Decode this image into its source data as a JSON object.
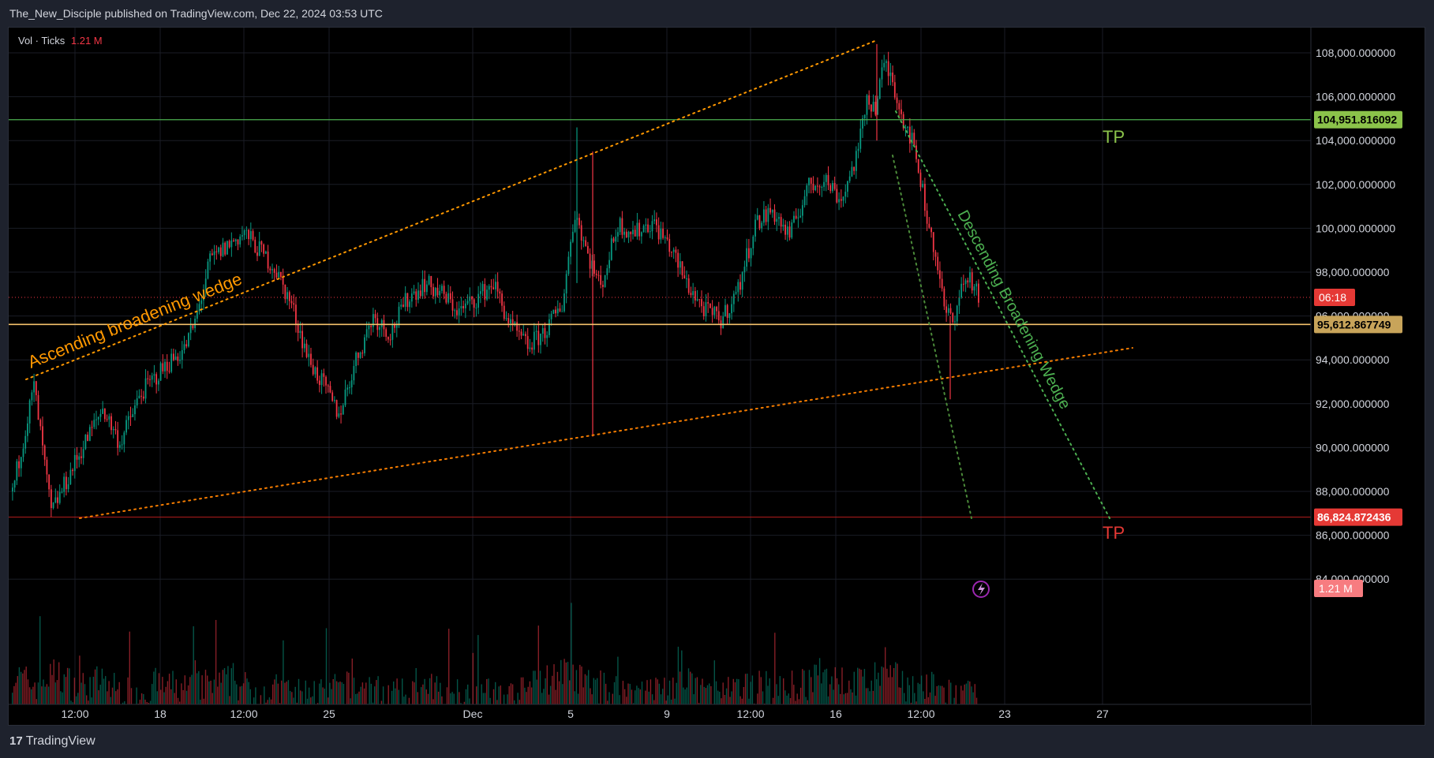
{
  "header": {
    "publish_note": "The_New_Disciple published on TradingView.com, Dec 22, 2024 03:53 UTC"
  },
  "legend": {
    "label": "Vol · Ticks",
    "value": "1.21 M"
  },
  "footer": {
    "brand": "TradingView"
  },
  "colors": {
    "bull": "#089981",
    "bear": "#f23645",
    "orange": "#ff9800",
    "green_line": "#4caf50",
    "tp_green": "#8bc34a",
    "tp_red": "#e53935",
    "gold": "#f5c26b",
    "grid": "#1a1d26"
  },
  "chart_data": {
    "type": "candlestick",
    "price_axis": {
      "ticks": [
        "108,000.000000",
        "106,000.000000",
        "104,000.000000",
        "102,000.000000",
        "100,000.000000",
        "98,000.000000",
        "96,000.000000",
        "94,000.000000",
        "92,000.000000",
        "90,000.000000",
        "88,000.000000",
        "86,000.000000",
        "84,000.000000"
      ],
      "range": [
        83000,
        109500
      ]
    },
    "time_axis": {
      "ticks": [
        "12:00",
        "18",
        "12:00",
        "25",
        "Dec",
        "5",
        "9",
        "12:00",
        "16",
        "12:00",
        "23",
        "27"
      ]
    },
    "levels": [
      {
        "name": "tp-upper",
        "price": 104951.816092,
        "label": "104,951.816092",
        "tag": "TP",
        "color": "#4caf50",
        "badge": "#8bc34a"
      },
      {
        "name": "current-price",
        "price": 95612.867749,
        "label": "95,612.867749",
        "color": "#f5c26b",
        "badge": "#c8a45a"
      },
      {
        "name": "tp-lower",
        "price": 86824.872436,
        "label": "86,824.872436",
        "tag": "TP",
        "color": "#b71c1c",
        "badge": "#e53935"
      }
    ],
    "countdown": {
      "label": "06:18",
      "price": 96850
    },
    "volume_badge": "1.21 M",
    "annotations": [
      {
        "text": "Ascending broadening wedge",
        "color": "#ff9800"
      },
      {
        "text": "Descending Broadening Wedge",
        "color": "#4caf50"
      }
    ],
    "price_path": [
      [
        0,
        88000
      ],
      [
        10,
        92800
      ],
      [
        18,
        87000
      ],
      [
        30,
        89500
      ],
      [
        42,
        91800
      ],
      [
        50,
        90200
      ],
      [
        60,
        92500
      ],
      [
        72,
        93800
      ],
      [
        80,
        94500
      ],
      [
        85,
        95700
      ],
      [
        92,
        98500
      ],
      [
        100,
        99200
      ],
      [
        108,
        99800
      ],
      [
        115,
        99000
      ],
      [
        122,
        98200
      ],
      [
        130,
        96500
      ],
      [
        138,
        94000
      ],
      [
        145,
        92800
      ],
      [
        152,
        91500
      ],
      [
        160,
        94000
      ],
      [
        168,
        96000
      ],
      [
        176,
        95200
      ],
      [
        184,
        96800
      ],
      [
        192,
        97500
      ],
      [
        200,
        97000
      ],
      [
        208,
        96200
      ],
      [
        216,
        96800
      ],
      [
        224,
        97500
      ],
      [
        232,
        95500
      ],
      [
        240,
        94600
      ],
      [
        248,
        95300
      ],
      [
        256,
        96500
      ],
      [
        262,
        100800
      ],
      [
        268,
        98800
      ],
      [
        274,
        97300
      ],
      [
        282,
        100200
      ],
      [
        290,
        99800
      ],
      [
        298,
        100300
      ],
      [
        306,
        99200
      ],
      [
        314,
        97500
      ],
      [
        322,
        96300
      ],
      [
        330,
        95800
      ],
      [
        338,
        97200
      ],
      [
        346,
        100200
      ],
      [
        354,
        100800
      ],
      [
        362,
        99600
      ],
      [
        370,
        101800
      ],
      [
        378,
        102300
      ],
      [
        386,
        101300
      ],
      [
        394,
        103500
      ],
      [
        398,
        106000
      ],
      [
        402,
        105500
      ],
      [
        406,
        107500
      ],
      [
        410,
        106800
      ],
      [
        414,
        105200
      ],
      [
        418,
        104300
      ],
      [
        422,
        102800
      ],
      [
        426,
        100500
      ],
      [
        430,
        98800
      ],
      [
        434,
        96300
      ],
      [
        438,
        95800
      ],
      [
        442,
        97300
      ],
      [
        446,
        97800
      ],
      [
        450,
        96800
      ]
    ],
    "volume_path": [
      0.85,
      0.6,
      0.9,
      0.5,
      0.7,
      0.4,
      0.45,
      0.55,
      0.5,
      0.6,
      0.7,
      0.4,
      0.45,
      0.35,
      0.4,
      0.5,
      0.55,
      0.35,
      0.3,
      0.45,
      0.5,
      0.4,
      0.35,
      0.3,
      0.6,
      0.95,
      0.7,
      0.5,
      0.45,
      0.4,
      0.55,
      0.6,
      0.35,
      0.4,
      0.55,
      0.45,
      0.6,
      0.75,
      0.65,
      0.7,
      0.85,
      0.55,
      0.5,
      0.3,
      0.25
    ]
  }
}
